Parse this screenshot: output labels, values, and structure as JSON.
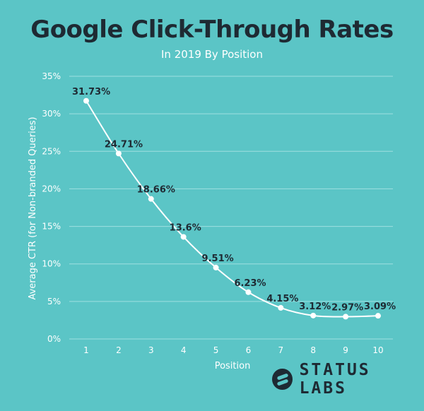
{
  "chart_data": {
    "type": "line",
    "title": "Google Click-Through Rates",
    "subtitle": "In 2019 By Position",
    "xlabel": "Position",
    "ylabel": "Average CTR (for Non-branded Queries)",
    "x": [
      1,
      2,
      3,
      4,
      5,
      6,
      7,
      8,
      9,
      10
    ],
    "values": [
      31.73,
      24.71,
      18.66,
      13.6,
      9.51,
      6.23,
      4.15,
      3.12,
      2.97,
      3.09
    ],
    "data_labels": [
      "31.73%",
      "24.71%",
      "18.66%",
      "13.6%",
      "9.51%",
      "6.23%",
      "4.15%",
      "3.12%",
      "2.97%",
      "3.09%"
    ],
    "y_ticks": [
      "0%",
      "5%",
      "10%",
      "15%",
      "20%",
      "25%",
      "30%",
      "35%"
    ],
    "ylim": [
      0,
      35
    ],
    "xlim": [
      1,
      10
    ],
    "grid": true,
    "colors": {
      "background": "#5bc5c6",
      "line": "#ffffff",
      "grid": "#9fdfe0",
      "label": "#1e2a33"
    }
  },
  "brand": {
    "logo_text": "STATUS LABS",
    "logo_icon": "status-labs-logo-icon"
  }
}
